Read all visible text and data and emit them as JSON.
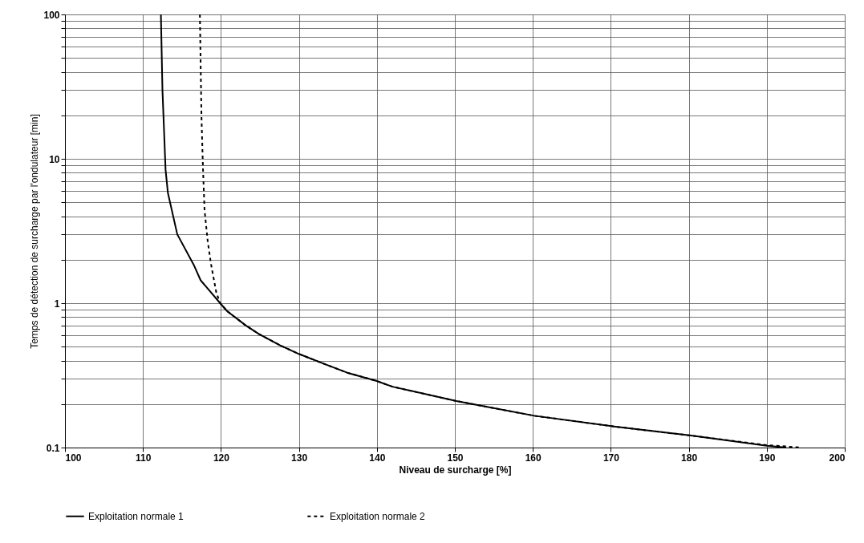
{
  "chart_data": {
    "type": "line",
    "xlabel": "Niveau de surcharge [%]",
    "ylabel": "Temps de détection de surcharge par l'ondulateur [min]",
    "log": "y",
    "grid": true,
    "legend": "bottom",
    "marker": "none",
    "xlim": [
      100,
      200
    ],
    "xticks": [
      100,
      110,
      120,
      130,
      140,
      150,
      160,
      170,
      180,
      190,
      200
    ],
    "ylim": [
      0.1,
      100
    ],
    "yticks": [
      0.1,
      {
        "value": 0.2,
        "label": null
      },
      {
        "value": 0.3,
        "label": null
      },
      {
        "value": 0.4,
        "label": null
      },
      {
        "value": 0.5,
        "label": null
      },
      {
        "value": 0.6,
        "label": null
      },
      {
        "value": 0.7,
        "label": null
      },
      {
        "value": 0.8,
        "label": null
      },
      {
        "value": 0.9,
        "label": null
      },
      1,
      {
        "value": 2,
        "label": null
      },
      {
        "value": 3,
        "label": null
      },
      {
        "value": 4,
        "label": null
      },
      {
        "value": 5,
        "label": null
      },
      {
        "value": 6,
        "label": null
      },
      {
        "value": 7,
        "label": null
      },
      {
        "value": 8,
        "label": null
      },
      {
        "value": 9,
        "label": null
      },
      10,
      {
        "value": 20,
        "label": null
      },
      {
        "value": 30,
        "label": null
      },
      {
        "value": 40,
        "label": null
      },
      {
        "value": 50,
        "label": null
      },
      {
        "value": 60,
        "label": null
      },
      {
        "value": 70,
        "label": null
      },
      {
        "value": 80,
        "label": null
      },
      {
        "value": 90,
        "label": null
      },
      100
    ],
    "series": [
      {
        "name": "Exploitation normale 1",
        "color": "#000000",
        "line_style": "solid",
        "x": [
          112.3,
          112.5,
          112.9,
          113.2,
          114.4,
          116.5,
          117.4,
          119.9,
          120.8,
          123.2,
          124.9,
          127.6,
          130.0,
          133.5,
          136.2,
          139.9,
          142.0,
          150.2,
          160.2,
          170.4,
          180.3,
          190.0,
          192.5
        ],
        "values": [
          100,
          30,
          8.4,
          5.8,
          3.0,
          1.85,
          1.44,
          1.0,
          0.88,
          0.7,
          0.61,
          0.51,
          0.445,
          0.375,
          0.33,
          0.29,
          0.264,
          0.21,
          0.166,
          0.14,
          0.121,
          0.103,
          0.1
        ]
      },
      {
        "name": "Exploitation normale 2",
        "color": "#000000",
        "line_style": "dashed",
        "x": [
          117.3,
          117.5,
          117.7,
          117.9,
          118.3,
          118.7,
          119.4,
          119.9,
          120.8,
          123.2,
          124.9,
          127.6,
          130.0,
          133.5,
          136.2,
          139.9,
          142.0,
          150.2,
          160.2,
          170.4,
          180.3,
          190.0,
          194.5
        ],
        "values": [
          100,
          20,
          8.5,
          4.4,
          2.7,
          1.9,
          1.19,
          1.0,
          0.88,
          0.7,
          0.61,
          0.51,
          0.445,
          0.375,
          0.33,
          0.29,
          0.264,
          0.21,
          0.166,
          0.14,
          0.121,
          0.104,
          0.1
        ]
      }
    ]
  }
}
